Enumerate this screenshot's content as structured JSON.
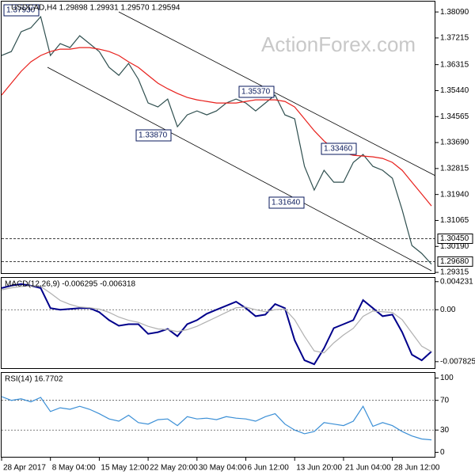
{
  "chart_data": [
    {
      "type": "line",
      "title": "USDCAD,H4 1.29898 1.29931 1.29570 1.29594",
      "watermark": "ActionForex.com",
      "xlim": [
        0,
        44
      ],
      "xticks": [
        {
          "value": 0,
          "label": "28 Apr 2017"
        },
        {
          "value": 5,
          "label": "8 May 04:00"
        },
        {
          "value": 10,
          "label": "15 May 12:00"
        },
        {
          "value": 15,
          "label": "22 May 20:00"
        },
        {
          "value": 20,
          "label": "30 May 04:00"
        },
        {
          "value": 25,
          "label": "6 Jun 12:00"
        },
        {
          "value": 30,
          "label": "13 Jun 20:00"
        },
        {
          "value": 35,
          "label": "21 Jun 04:00"
        },
        {
          "value": 40,
          "label": "28 Jun 12:00"
        }
      ],
      "ylim": [
        1.2929,
        1.3844
      ],
      "yticks": [
        {
          "value": 1.3809,
          "label": "1.38090"
        },
        1.37215,
        1.36315,
        {
          "value": 1.3544,
          "label": "1.35440"
        },
        1.34565,
        {
          "value": 1.3369,
          "label": "1.33690"
        },
        1.32815,
        {
          "value": 1.3194,
          "label": "1.31940"
        },
        1.31065,
        {
          "value": 1.3019,
          "label": "1.30190"
        },
        1.29315
      ],
      "grid": false,
      "levels": [
        {
          "value": 1.3045,
          "label": "1.30450"
        },
        {
          "value": 1.2968,
          "label": "1.29680"
        }
      ],
      "annotations": [
        "1.37930",
        "1.35370",
        "1.33870",
        "1.33460",
        "1.31640"
      ],
      "series": [
        {
          "color": "#2f4f4f",
          "values": [
            1.36623,
            1.36756,
            1.37423,
            1.37556,
            1.3793,
            1.36623,
            1.37023,
            1.3689,
            1.3729,
            1.37023,
            1.36756,
            1.36223,
            1.35956,
            1.36356,
            1.35823,
            1.35022,
            1.34889,
            1.35156,
            1.34222,
            1.34622,
            1.34755,
            1.34622,
            1.34755,
            1.35022,
            1.35156,
            1.35022,
            1.34755,
            1.35022,
            1.35289,
            1.34622,
            1.34489,
            1.32888,
            1.32088,
            1.32755,
            1.32355,
            1.32355,
            1.33021,
            1.33288,
            1.32888,
            1.32755,
            1.32488,
            1.31421,
            1.3022,
            1.29954,
            1.29594
          ]
        },
        {
          "color": "#e8201c",
          "values": [
            1.35289,
            1.35689,
            1.36089,
            1.36409,
            1.36623,
            1.36756,
            1.36836,
            1.36836,
            1.3689,
            1.3689,
            1.36836,
            1.36756,
            1.36623,
            1.36409,
            1.36223,
            1.35956,
            1.35689,
            1.35502,
            1.35342,
            1.35209,
            1.35129,
            1.35076,
            1.35022,
            1.35022,
            1.35022,
            1.35076,
            1.35129,
            1.35129,
            1.35129,
            1.35076,
            1.34889,
            1.34489,
            1.34089,
            1.33742,
            1.33475,
            1.33342,
            1.33262,
            1.33235,
            1.33208,
            1.33155,
            1.33021,
            1.32755,
            1.32355,
            1.31954,
            1.31554
          ]
        }
      ]
    },
    {
      "type": "line",
      "title": "MACD(12,26,9) -0.006295 -0.006318",
      "xlim": [
        0,
        44
      ],
      "ylim": [
        -0.0088,
        0.0048
      ],
      "yticks": [
        0.004231,
        {
          "value": 0,
          "label": "0.00"
        },
        -0.007825
      ],
      "grid": true,
      "series": [
        {
          "color": "#00008b",
          "values": [
            0.00326,
            0.00363,
            0.00387,
            0.00363,
            0.00326,
            0.00024,
            0,
            0.00012,
            0.00024,
            0.00024,
            -0.00036,
            -0.00157,
            -0.00242,
            -0.00218,
            -0.00218,
            -0.00363,
            -0.00338,
            -0.0029,
            -0.00399,
            -0.00218,
            -0.00157,
            -0.0006,
            0,
            0.0006,
            0.00121,
            0.00024,
            -0.00097,
            -0.00073,
            0.00085,
            0.00024,
            -0.00459,
            -0.00762,
            -0.00822,
            -0.0058,
            -0.00278,
            -0.00218,
            -0.00157,
            0.00145,
            0.00024,
            -0.00097,
            -0.00073,
            -0.00338,
            -0.00677,
            -0.00762,
            -0.006295
          ]
        },
        {
          "color": "#b0b0b0",
          "values": [
            0.003,
            0.0033,
            0.0035,
            0.0036,
            0.0035,
            0.0025,
            0.0014,
            0.0008,
            0.0004,
            0.0003,
            0.0001,
            -0.0004,
            -0.0011,
            -0.0016,
            -0.0019,
            -0.0025,
            -0.0029,
            -0.003,
            -0.0033,
            -0.003,
            -0.0025,
            -0.0018,
            -0.0011,
            -0.0004,
            0.0003,
            0.0004,
            0,
            -0.0003,
            0,
            0.0001,
            -0.0015,
            -0.004,
            -0.0062,
            -0.0065,
            -0.005,
            -0.0038,
            -0.0028,
            -0.001,
            -0.0002,
            -0.0003,
            -0.0004,
            -0.0015,
            -0.0035,
            -0.0055,
            -0.006318
          ]
        }
      ]
    },
    {
      "type": "line",
      "title": "RSI(14) 16.7702",
      "xlim": [
        0,
        44
      ],
      "ylim": [
        -6,
        107
      ],
      "yticks": [
        100,
        70,
        30,
        0
      ],
      "grid": true,
      "series": [
        {
          "color": "#3b8fd6",
          "values": [
            75,
            70,
            72,
            68,
            74,
            55,
            60,
            58,
            62,
            58,
            52,
            45,
            42,
            50,
            40,
            38,
            44,
            45,
            36,
            48,
            45,
            46,
            44,
            48,
            46,
            45,
            42,
            48,
            52,
            38,
            30,
            25,
            28,
            40,
            38,
            36,
            42,
            62,
            35,
            40,
            36,
            28,
            22,
            18,
            16.7702
          ]
        }
      ]
    }
  ]
}
